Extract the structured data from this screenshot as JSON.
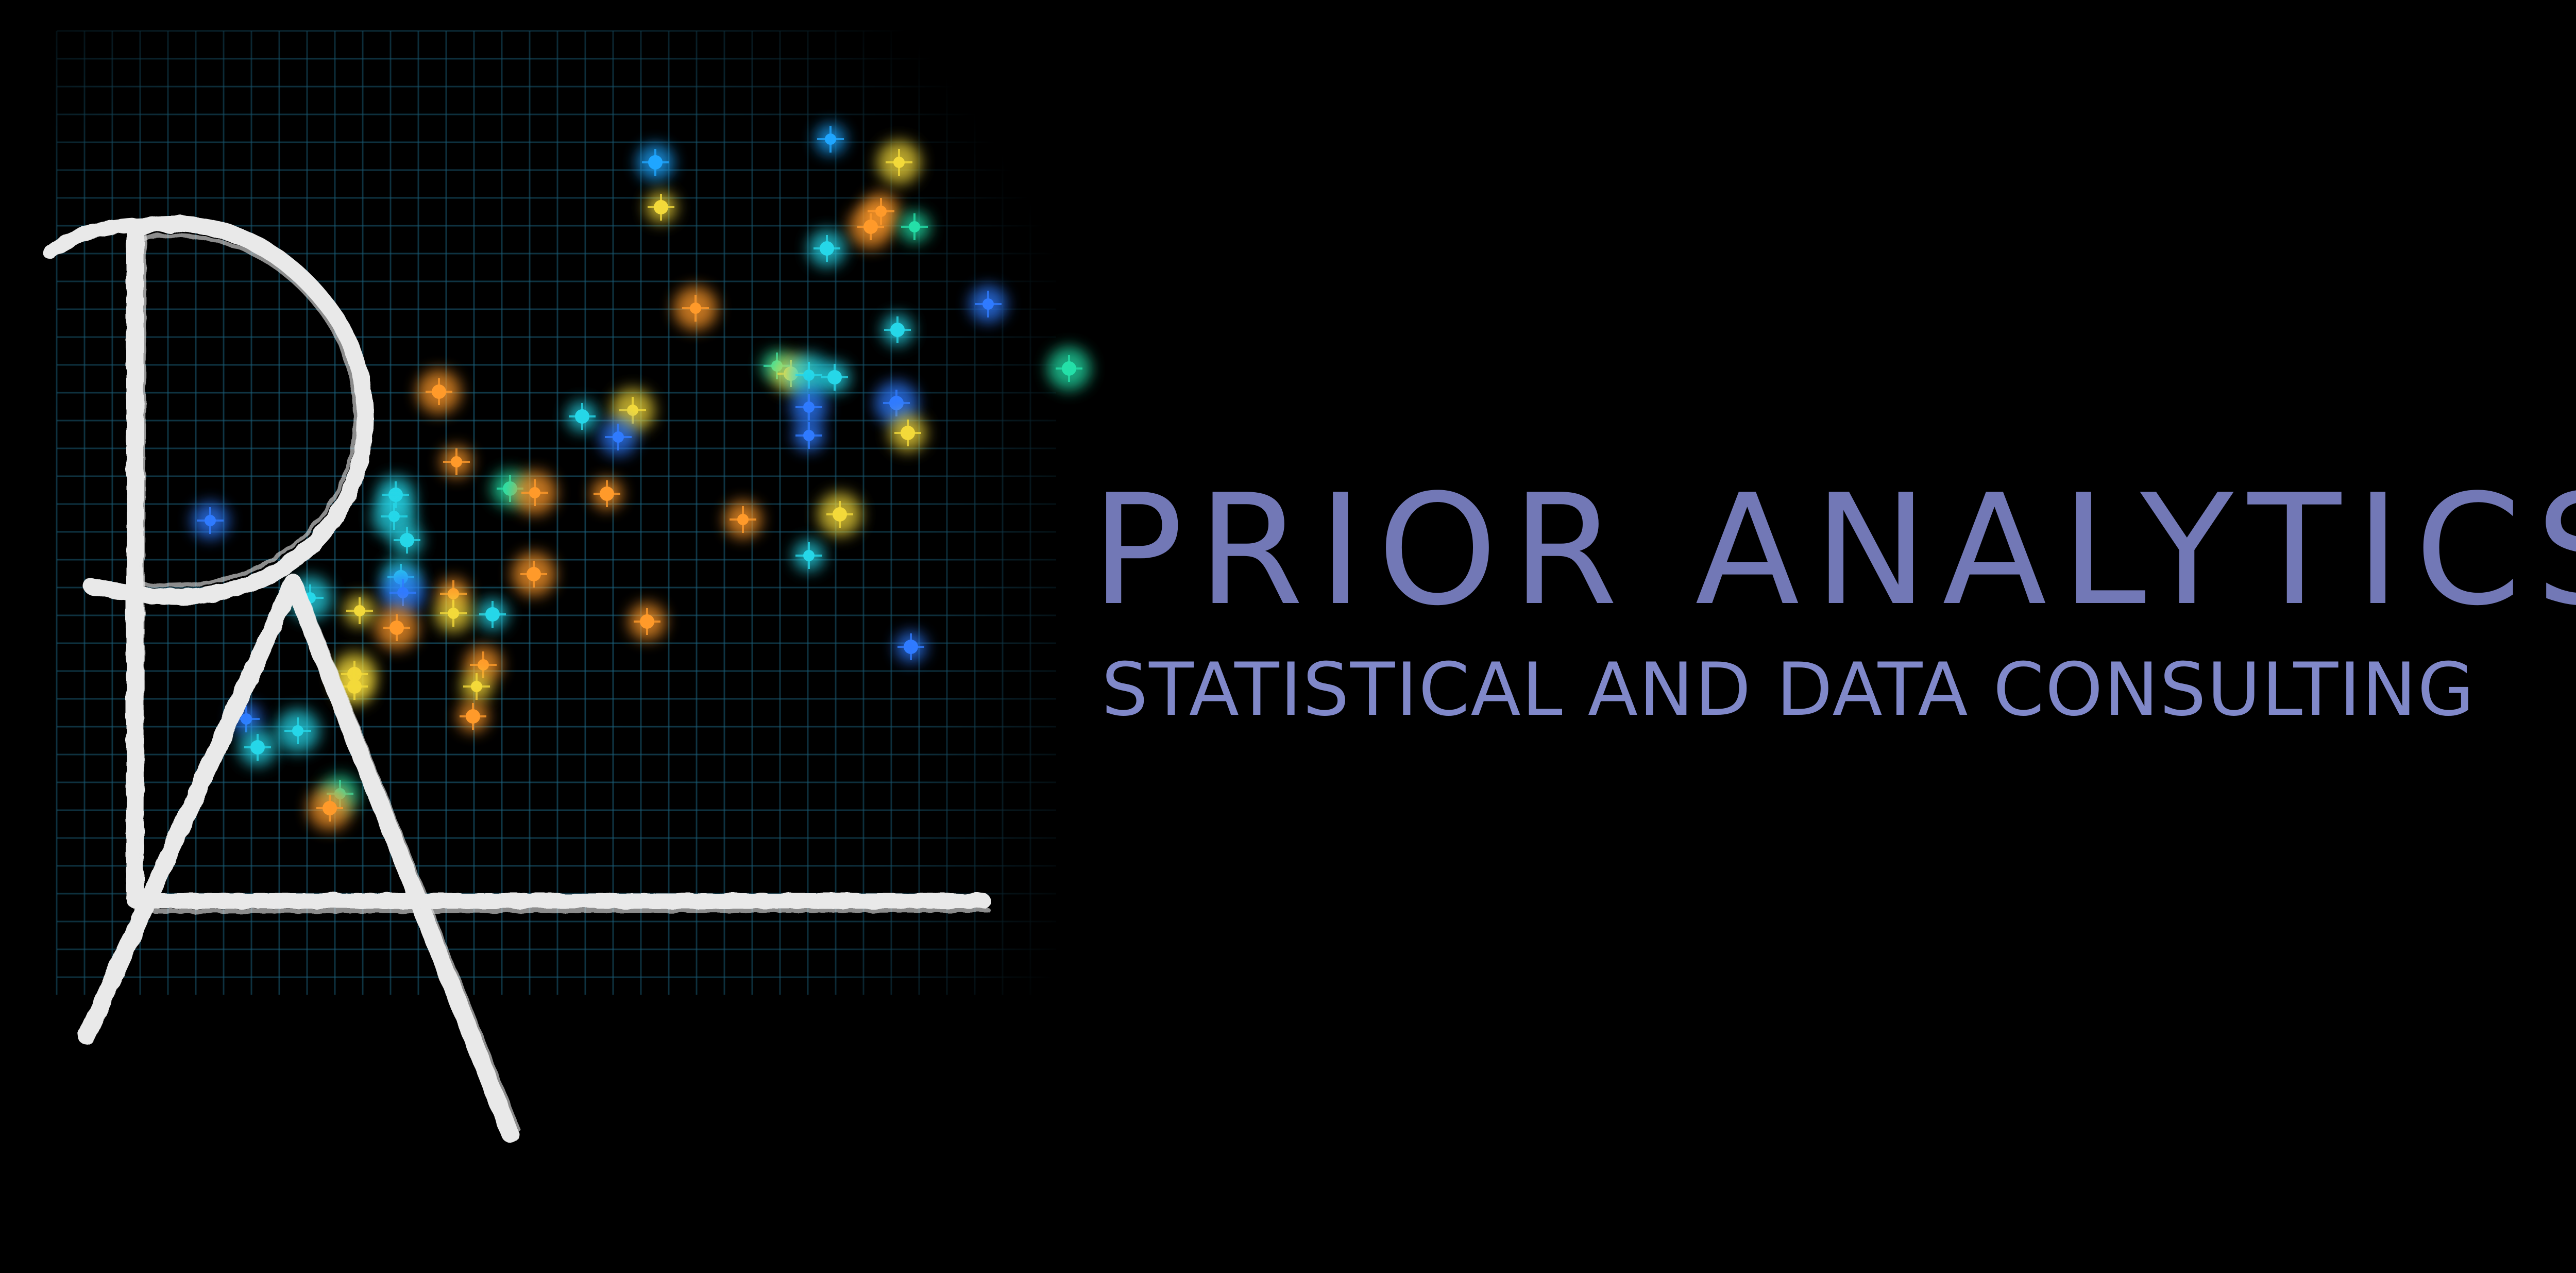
{
  "brand": {
    "name": "PRIOR ANALYTICS",
    "tagline": "STATISTICAL AND DATA CONSULTING",
    "monogram": "PA"
  },
  "colors": {
    "background": "#000000",
    "title": "#7278b6",
    "tagline": "#8088c9",
    "grid": "#1f6f8e",
    "strokes": "#e9e9e9",
    "star_palette": [
      "#1fa6ff",
      "#26d7e8",
      "#24e0a8",
      "#f3d93a",
      "#ff9a2a",
      "#2f7bff"
    ]
  },
  "icons": {
    "logo": "pa-monogram-scatter-logo"
  }
}
